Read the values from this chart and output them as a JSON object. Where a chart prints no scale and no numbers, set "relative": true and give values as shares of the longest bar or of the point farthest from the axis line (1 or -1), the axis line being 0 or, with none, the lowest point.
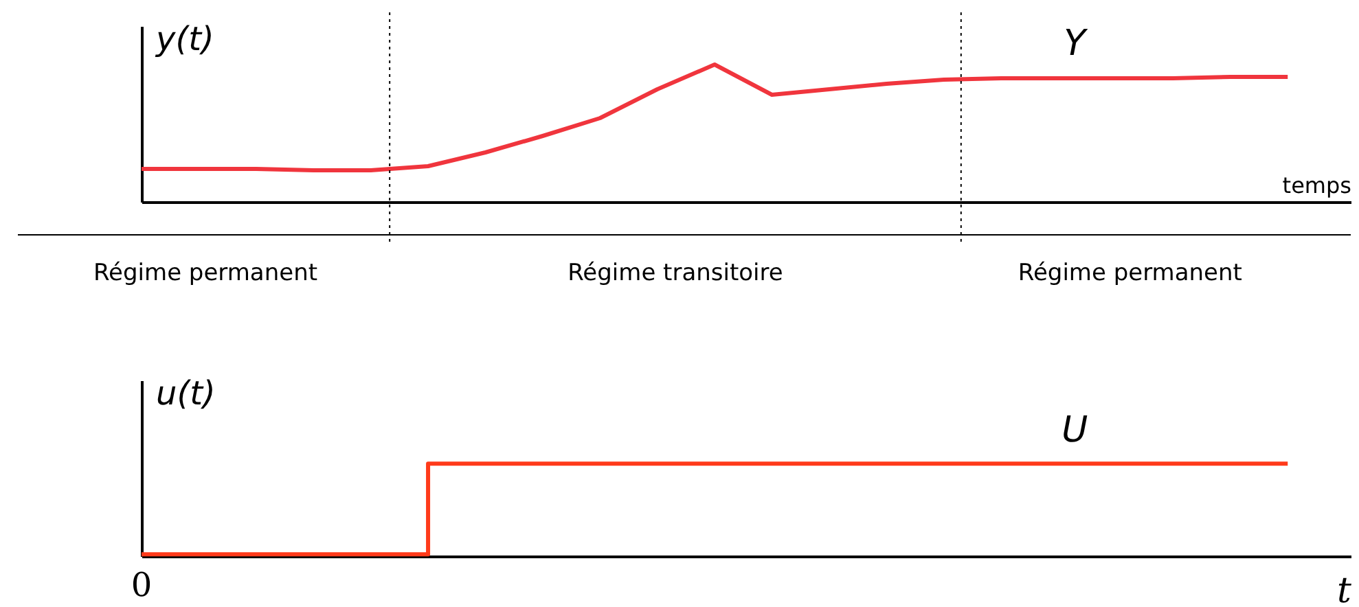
{
  "chart_data": [
    {
      "type": "line",
      "relative": true,
      "ylabel": "y(t)",
      "xlabel": "temps",
      "categories": [
        null,
        null,
        null,
        null,
        null,
        null,
        null,
        null,
        null,
        null,
        null,
        null,
        null,
        null,
        null,
        null,
        null,
        null,
        null,
        null,
        null
      ],
      "series": [
        {
          "name": "Y",
          "color": "#f0353d",
          "values": [
            0.24,
            0.24,
            0.24,
            0.23,
            0.23,
            0.26,
            0.36,
            0.48,
            0.61,
            0.82,
            1.0,
            0.78,
            0.82,
            0.86,
            0.89,
            0.9,
            0.9,
            0.9,
            0.9,
            0.91,
            0.91
          ]
        }
      ],
      "annotations": [
        "Régime permanent",
        "Régime transitoire",
        "Régime permanent"
      ]
    },
    {
      "type": "line",
      "relative": true,
      "ylabel": "u(t)",
      "xlabel": "t",
      "categories": [
        null,
        null,
        null,
        null,
        null,
        null,
        null,
        null,
        null,
        null,
        null,
        null,
        null,
        null,
        null,
        null,
        null,
        null,
        null,
        null,
        null
      ],
      "series": [
        {
          "name": "U",
          "type": "step",
          "color": "#ff3a1a",
          "values": [
            0.02,
            0.02,
            0.02,
            0.02,
            0.02,
            1.0,
            1.0,
            1.0,
            1.0,
            1.0,
            1.0,
            1.0,
            1.0,
            1.0,
            1.0,
            1.0,
            1.0,
            1.0,
            1.0,
            1.0,
            1.0
          ]
        }
      ],
      "annotations": [
        "0"
      ]
    }
  ]
}
